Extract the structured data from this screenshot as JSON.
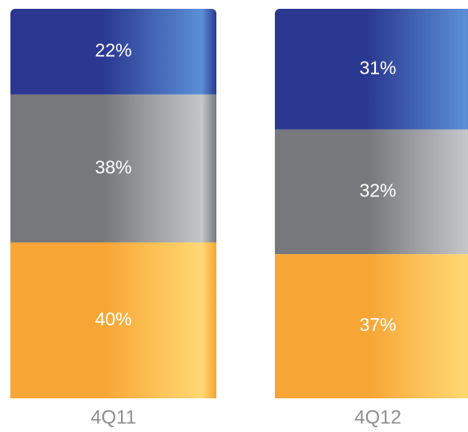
{
  "chart_data": {
    "type": "bar",
    "stacked": true,
    "orientation": "vertical",
    "categories": [
      "4Q11",
      "4Q12"
    ],
    "series": [
      {
        "values": [
          22,
          31
        ],
        "color": "#2a3891",
        "highlight": "#5b8fd6",
        "label_color": "#ffffff"
      },
      {
        "values": [
          38,
          32
        ],
        "color": "#77787b",
        "highlight": "#c4c6c8",
        "label_color": "#ffffff"
      },
      {
        "values": [
          40,
          37
        ],
        "color": "#f7a535",
        "highlight": "#ffd873",
        "label_color": "#ffffff"
      }
    ],
    "value_suffix": "%",
    "ylim": [
      0,
      100
    ],
    "grid": false,
    "legend": "none",
    "title": "",
    "xlabel": "",
    "ylabel": ""
  }
}
